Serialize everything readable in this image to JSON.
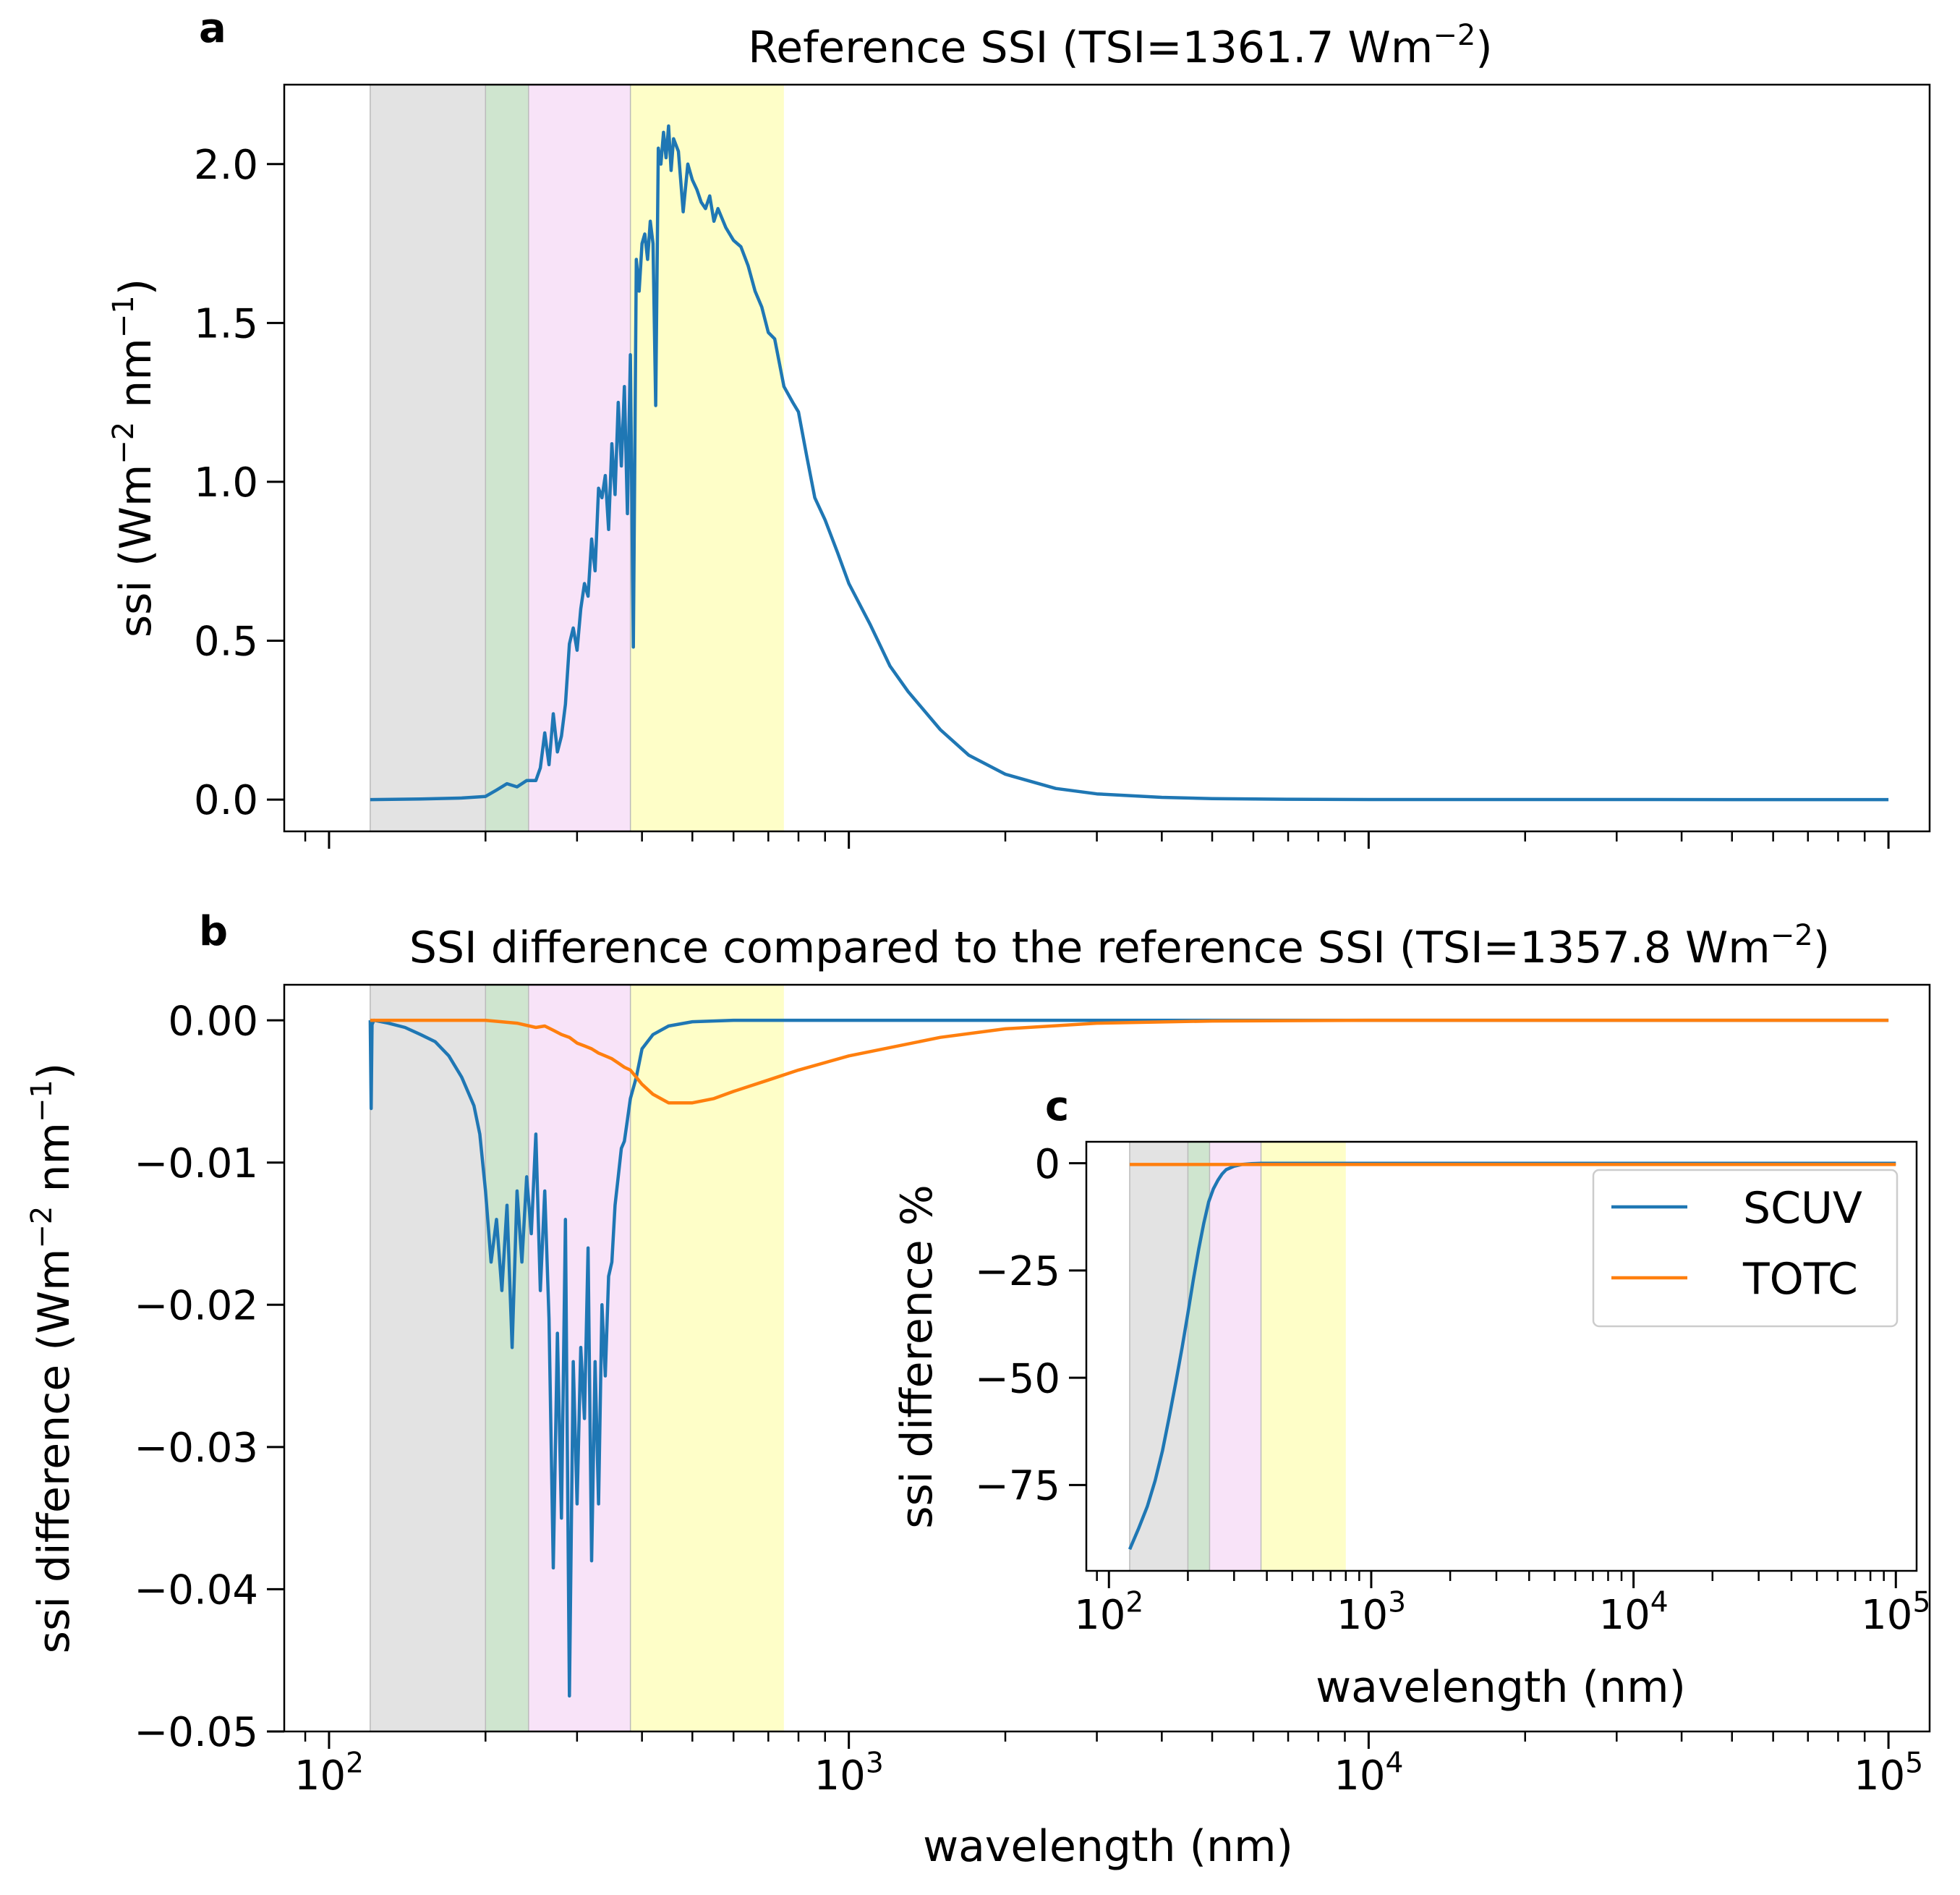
{
  "chart_data": [
    {
      "panel": "a",
      "type": "line",
      "title": "Reference SSI (TSI=1361.7 Wm⁻²)",
      "title_parts": {
        "main": "Reference SSI (TSI=1361.7 Wm",
        "sup": "−2",
        "close": ")"
      },
      "xlabel": "",
      "ylabel": "ssi (Wm⁻² nm⁻¹)",
      "ylabel_parts": {
        "a": "ssi (Wm",
        "s1": "−2",
        "b": " nm",
        "s2": "−1",
        "c": ")"
      },
      "x_scale": "log",
      "xlim": [
        82,
        120000
      ],
      "ylim": [
        -0.1,
        2.25
      ],
      "yticks": [
        0.0,
        0.5,
        1.0,
        1.5,
        2.0
      ],
      "ytick_labels": [
        "0.0",
        "0.5",
        "1.0",
        "1.5",
        "2.0"
      ],
      "grid": false,
      "shaded_bands": [
        {
          "from": 120,
          "to": 200,
          "color": "#e3e3e3"
        },
        {
          "from": 200,
          "to": 242,
          "color": "#cfe5cf"
        },
        {
          "from": 242,
          "to": 380,
          "color": "#f8e3f8"
        },
        {
          "from": 380,
          "to": 750,
          "color": "#fefec8"
        }
      ],
      "series": [
        {
          "color": "#1f77b4",
          "x": [
            120,
            150,
            180,
            200,
            210,
            220,
            230,
            240,
            250,
            255,
            260,
            265,
            270,
            275,
            280,
            285,
            290,
            295,
            300,
            305,
            310,
            315,
            320,
            325,
            330,
            335,
            340,
            345,
            350,
            355,
            360,
            365,
            370,
            375,
            380,
            385,
            390,
            395,
            400,
            405,
            410,
            415,
            420,
            425,
            430,
            435,
            440,
            445,
            450,
            455,
            460,
            470,
            480,
            490,
            500,
            510,
            520,
            530,
            540,
            550,
            560,
            580,
            600,
            620,
            640,
            660,
            680,
            700,
            720,
            750,
            780,
            800,
            830,
            860,
            900,
            950,
            1000,
            1100,
            1200,
            1300,
            1500,
            1700,
            2000,
            2500,
            3000,
            4000,
            5000,
            7000,
            10000,
            20000,
            50000,
            100000
          ],
          "y": [
            0.0,
            0.002,
            0.005,
            0.01,
            0.03,
            0.05,
            0.04,
            0.06,
            0.06,
            0.1,
            0.21,
            0.11,
            0.27,
            0.15,
            0.2,
            0.3,
            0.49,
            0.54,
            0.47,
            0.6,
            0.68,
            0.64,
            0.82,
            0.72,
            0.98,
            0.95,
            1.02,
            0.85,
            1.12,
            0.96,
            1.25,
            1.05,
            1.3,
            0.9,
            1.4,
            0.48,
            1.7,
            1.6,
            1.75,
            1.78,
            1.7,
            1.82,
            1.75,
            1.24,
            2.05,
            2.0,
            2.1,
            2.02,
            2.12,
            1.98,
            2.08,
            2.04,
            1.85,
            2.0,
            1.95,
            1.92,
            1.88,
            1.86,
            1.9,
            1.82,
            1.86,
            1.8,
            1.76,
            1.74,
            1.68,
            1.6,
            1.55,
            1.47,
            1.45,
            1.3,
            1.25,
            1.22,
            1.08,
            0.95,
            0.88,
            0.78,
            0.68,
            0.55,
            0.42,
            0.34,
            0.22,
            0.14,
            0.08,
            0.035,
            0.018,
            0.007,
            0.003,
            0.001,
            0.0003,
            0.0001,
            0.0,
            0.0
          ]
        }
      ]
    },
    {
      "panel": "b",
      "type": "line",
      "title": "SSI difference compared to the reference SSI (TSI=1357.8 Wm⁻²)",
      "title_parts": {
        "main": "SSI difference compared to the reference SSI (TSI=1357.8 Wm",
        "sup": "−2",
        "close": ")"
      },
      "xlabel": "wavelength (nm)",
      "ylabel": "ssi difference (Wm⁻² nm⁻¹)",
      "ylabel_parts": {
        "a": "ssi difference (Wm",
        "s1": "−2",
        "b": " nm",
        "s2": "−1",
        "c": ")"
      },
      "x_scale": "log",
      "xlim": [
        82,
        120000
      ],
      "xticks": [
        100,
        1000,
        10000,
        100000
      ],
      "xtick_labels": [
        {
          "base": "10",
          "exp": "2"
        },
        {
          "base": "10",
          "exp": "3"
        },
        {
          "base": "10",
          "exp": "4"
        },
        {
          "base": "10",
          "exp": "5"
        }
      ],
      "ylim": [
        -0.05,
        0.0025
      ],
      "yticks": [
        0.0,
        -0.01,
        -0.02,
        -0.03,
        -0.04,
        -0.05
      ],
      "ytick_labels": [
        "0.00",
        "−0.01",
        "−0.02",
        "−0.03",
        "−0.04",
        "−0.05"
      ],
      "grid": false,
      "shaded_bands": [
        {
          "from": 120,
          "to": 200,
          "color": "#e3e3e3"
        },
        {
          "from": 200,
          "to": 242,
          "color": "#cfe5cf"
        },
        {
          "from": 242,
          "to": 380,
          "color": "#f8e3f8"
        },
        {
          "from": 380,
          "to": 750,
          "color": "#fefec8"
        }
      ],
      "series": [
        {
          "name": "SCUV",
          "color": "#1f77b4",
          "x": [
            120,
            120.5,
            121,
            122,
            130,
            140,
            150,
            160,
            170,
            180,
            190,
            195,
            200,
            205,
            210,
            215,
            220,
            225,
            230,
            235,
            240,
            245,
            250,
            255,
            260,
            265,
            270,
            275,
            280,
            285,
            290,
            295,
            300,
            305,
            310,
            315,
            320,
            325,
            330,
            335,
            340,
            345,
            350,
            355,
            360,
            365,
            370,
            375,
            380,
            390,
            400,
            420,
            450,
            500,
            600,
            800,
            1000,
            2000,
            10000,
            100000
          ],
          "y": [
            0.0,
            -0.0062,
            -0.0003,
            0.0,
            -0.0002,
            -0.0005,
            -0.001,
            -0.0015,
            -0.0025,
            -0.004,
            -0.006,
            -0.008,
            -0.012,
            -0.017,
            -0.014,
            -0.019,
            -0.013,
            -0.023,
            -0.012,
            -0.017,
            -0.011,
            -0.015,
            -0.008,
            -0.019,
            -0.012,
            -0.021,
            -0.0385,
            -0.022,
            -0.035,
            -0.014,
            -0.0475,
            -0.024,
            -0.034,
            -0.023,
            -0.028,
            -0.016,
            -0.038,
            -0.024,
            -0.034,
            -0.02,
            -0.025,
            -0.018,
            -0.017,
            -0.013,
            -0.011,
            -0.009,
            -0.0085,
            -0.007,
            -0.0055,
            -0.004,
            -0.002,
            -0.001,
            -0.0004,
            -0.0001,
            0.0,
            0.0,
            0.0,
            0.0,
            0.0,
            0.0
          ]
        },
        {
          "name": "TOTC",
          "color": "#ff7f0e",
          "x": [
            120,
            150,
            200,
            230,
            250,
            260,
            270,
            280,
            290,
            300,
            310,
            320,
            330,
            340,
            350,
            360,
            370,
            380,
            390,
            400,
            420,
            450,
            500,
            550,
            600,
            700,
            800,
            1000,
            1500,
            2000,
            3000,
            5000,
            10000,
            100000
          ],
          "y": [
            0.0,
            0.0,
            0.0,
            -0.0002,
            -0.0005,
            -0.0004,
            -0.0007,
            -0.001,
            -0.0012,
            -0.0016,
            -0.0018,
            -0.002,
            -0.0023,
            -0.0025,
            -0.0027,
            -0.003,
            -0.0033,
            -0.0035,
            -0.004,
            -0.0045,
            -0.0052,
            -0.0058,
            -0.0058,
            -0.0055,
            -0.005,
            -0.0042,
            -0.0035,
            -0.0025,
            -0.0012,
            -0.0006,
            -0.0002,
            -5e-05,
            0.0,
            0.0
          ]
        }
      ]
    },
    {
      "panel": "c",
      "type": "line",
      "inset": true,
      "xlabel": "wavelength (nm)",
      "ylabel": "ssi difference %",
      "x_scale": "log",
      "xlim": [
        82,
        120000
      ],
      "xticks": [
        100,
        1000,
        10000,
        100000
      ],
      "xtick_labels": [
        {
          "base": "10",
          "exp": "2"
        },
        {
          "base": "10",
          "exp": "3"
        },
        {
          "base": "10",
          "exp": "4"
        },
        {
          "base": "10",
          "exp": "5"
        }
      ],
      "ylim": [
        -95,
        5
      ],
      "yticks": [
        0,
        -25,
        -50,
        -75
      ],
      "ytick_labels": [
        "0",
        "−25",
        "−50",
        "−75"
      ],
      "grid": false,
      "legend": {
        "position": "right",
        "entries": [
          "SCUV",
          "TOTC"
        ]
      },
      "shaded_bands": [
        {
          "from": 120,
          "to": 200,
          "color": "#e3e3e3"
        },
        {
          "from": 200,
          "to": 242,
          "color": "#cfe5cf"
        },
        {
          "from": 242,
          "to": 380,
          "color": "#f8e3f8"
        },
        {
          "from": 380,
          "to": 800,
          "color": "#fefec8"
        }
      ],
      "series": [
        {
          "name": "SCUV",
          "color": "#1f77b4",
          "x": [
            120,
            130,
            140,
            150,
            160,
            170,
            180,
            190,
            200,
            210,
            220,
            230,
            240,
            250,
            260,
            270,
            280,
            300,
            320,
            350,
            380,
            400,
            500,
            1000,
            100000
          ],
          "y": [
            -90,
            -85,
            -80,
            -74,
            -67,
            -59,
            -51,
            -43,
            -35,
            -27,
            -20,
            -14,
            -9,
            -6,
            -4,
            -2.5,
            -1.5,
            -0.7,
            -0.3,
            -0.1,
            0,
            0,
            0,
            0,
            0
          ]
        },
        {
          "name": "TOTC",
          "color": "#ff7f0e",
          "x": [
            120,
            1000,
            100000
          ],
          "y": [
            -0.3,
            -0.3,
            -0.3
          ]
        }
      ]
    }
  ]
}
